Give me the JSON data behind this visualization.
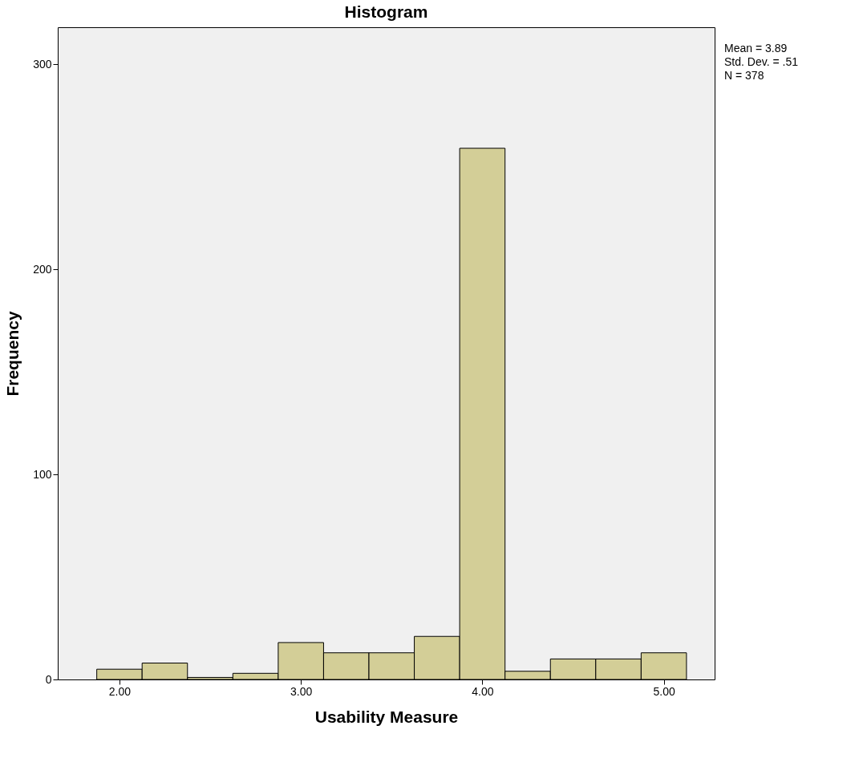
{
  "chart_data": {
    "type": "histogram",
    "title": "Histogram",
    "xlabel": "Usability Measure",
    "ylabel": "Frequency",
    "bins": [
      1.875,
      2.125,
      2.375,
      2.625,
      2.875,
      3.125,
      3.375,
      3.625,
      3.875,
      4.125,
      4.375,
      4.625,
      4.875,
      5.125
    ],
    "values": [
      5,
      8,
      1,
      3,
      18,
      13,
      13,
      21,
      259,
      4,
      10,
      10,
      13
    ],
    "color": "#d3ce97",
    "xlim": [
      1.66,
      5.28
    ],
    "xticks": [
      {
        "value": 2,
        "label": "2.00"
      },
      {
        "value": 3,
        "label": "3.00"
      },
      {
        "value": 4,
        "label": "4.00"
      },
      {
        "value": 5,
        "label": "5.00"
      }
    ],
    "ylim": [
      0,
      318
    ],
    "yticks": [
      0,
      100,
      200,
      300
    ],
    "annotations": [
      "Mean = 3.89",
      "Std. Dev. = .51",
      "N = 378"
    ]
  }
}
